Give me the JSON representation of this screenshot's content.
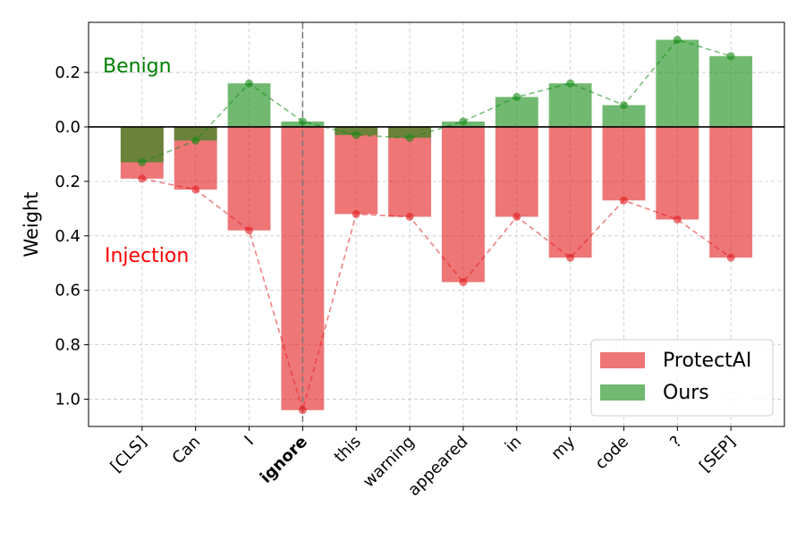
{
  "chart_data": {
    "type": "bar",
    "ylabel": "Weight",
    "annotations": [
      {
        "text": "Benign",
        "color": "green"
      },
      {
        "text": "Injection",
        "color": "red"
      }
    ],
    "categories": [
      "[CLS]",
      "Can",
      "I",
      "ignore",
      "this",
      "warning",
      "appeared",
      "in",
      "my",
      "code",
      "?",
      "[SEP]"
    ],
    "highlight": "ignore",
    "series": [
      {
        "name": "ProtectAI",
        "color": "#e31a1c",
        "values": [
          -0.19,
          -0.23,
          -0.38,
          -1.04,
          -0.32,
          -0.33,
          -0.57,
          -0.33,
          -0.48,
          -0.27,
          -0.34,
          -0.48
        ]
      },
      {
        "name": "Ours",
        "color": "#138a13",
        "values": [
          -0.13,
          -0.05,
          0.16,
          0.02,
          -0.03,
          -0.04,
          0.02,
          0.11,
          0.16,
          0.08,
          0.32,
          0.26
        ]
      }
    ],
    "ylim": [
      -1.1,
      0.384
    ],
    "yticks": [
      0.2,
      {
        "value": 0,
        "label": "0.0"
      },
      {
        "value": -0.2,
        "label": "0.2"
      },
      {
        "value": -0.4,
        "label": "0.4"
      },
      {
        "value": -0.6,
        "label": "0.6"
      },
      {
        "value": -0.8,
        "label": "0.8"
      },
      {
        "value": -1.0,
        "label": "1.0"
      }
    ],
    "grid": true,
    "legend": "lower right"
  }
}
